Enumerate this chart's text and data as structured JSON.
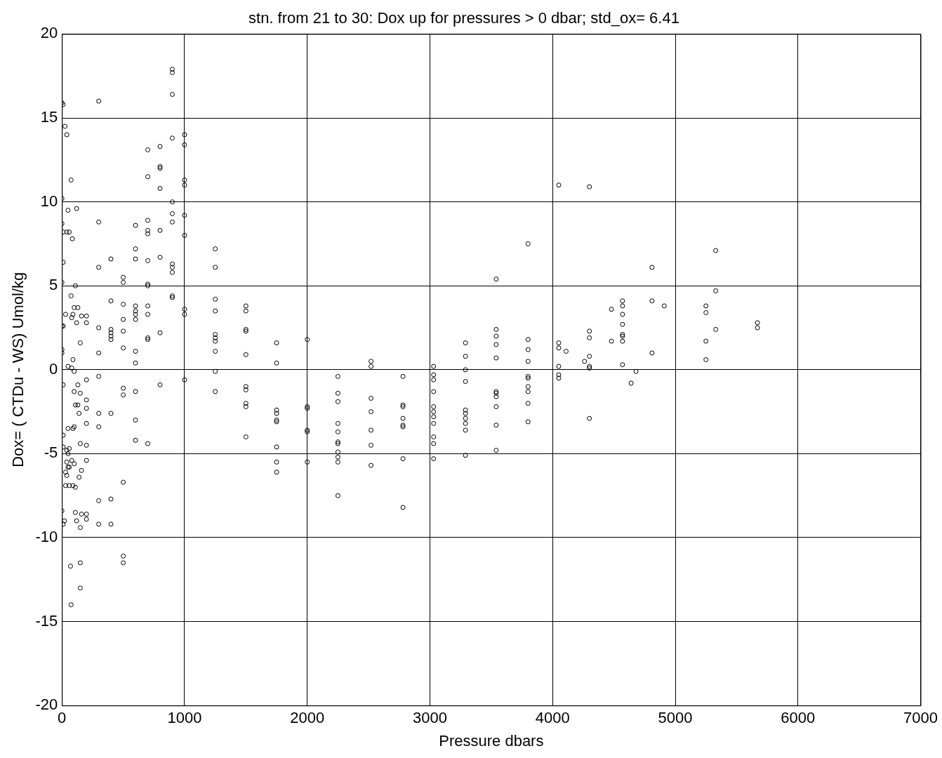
{
  "chart_data": {
    "type": "scatter",
    "title": "stn. from 21 to 30: Dox up for pressures > 0 dbar; std_ox= 6.41",
    "xlabel": "Pressure dbars",
    "ylabel": "Dox= ( CTDu - WS) Umol/kg",
    "color": "#000000",
    "marker": "circle",
    "grid": true,
    "xlim": [
      0,
      7000
    ],
    "ylim": [
      -20,
      20
    ],
    "xticks": [
      0,
      1000,
      2000,
      3000,
      4000,
      5000,
      6000,
      7000
    ],
    "yticks": [
      -20,
      -15,
      -10,
      -5,
      0,
      5,
      10,
      15,
      20
    ],
    "x": [
      0,
      10,
      0,
      0,
      10,
      0,
      10,
      0,
      10,
      0,
      0,
      10,
      10,
      10,
      0,
      10,
      20,
      25,
      40,
      50,
      40,
      60,
      30,
      50,
      40,
      50,
      40,
      50,
      30,
      40,
      30,
      60,
      50,
      60,
      60,
      75,
      85,
      75,
      90,
      100,
      80,
      80,
      90,
      100,
      110,
      100,
      90,
      100,
      80,
      100,
      90,
      110,
      70,
      75,
      110,
      120,
      120,
      110,
      130,
      120,
      130,
      140,
      130,
      150,
      150,
      160,
      150,
      160,
      140,
      150,
      150,
      150,
      160,
      200,
      200,
      200,
      200,
      200,
      200,
      200,
      200,
      200,
      200,
      300,
      300,
      300,
      300,
      300,
      300,
      300,
      300,
      300,
      300,
      400,
      400,
      400,
      400,
      400,
      400,
      400,
      400,
      400,
      500,
      500,
      500,
      500,
      500,
      500,
      500,
      500,
      500,
      500,
      500,
      600,
      600,
      600,
      600,
      600,
      600,
      600,
      600,
      600,
      600,
      600,
      600,
      700,
      700,
      700,
      700,
      700,
      700,
      700,
      700,
      700,
      700,
      700,
      700,
      700,
      800,
      800,
      800,
      800,
      800,
      800,
      800,
      800,
      900,
      900,
      900,
      900,
      900,
      900,
      900,
      900,
      900,
      900,
      900,
      900,
      1000,
      1000,
      1000,
      1000,
      1000,
      1000,
      1000,
      1000,
      1000,
      1250,
      1250,
      1250,
      1250,
      1250,
      1250,
      1250,
      1250,
      1250,
      1250,
      1500,
      1500,
      1500,
      1500,
      1500,
      1500,
      1500,
      1500,
      1500,
      1500,
      1750,
      1750,
      1750,
      1750,
      1750,
      1750,
      1750,
      1750,
      1750,
      2000,
      2000,
      2000,
      2000,
      2000,
      2000,
      2250,
      2250,
      2250,
      2250,
      2250,
      2250,
      2250,
      2250,
      2250,
      2250,
      2250,
      2520,
      2520,
      2520,
      2520,
      2520,
      2520,
      2520,
      2780,
      2780,
      2780,
      2780,
      2780,
      2780,
      2780,
      2780,
      3030,
      3030,
      3030,
      3030,
      3030,
      3030,
      3030,
      3030,
      3030,
      3030,
      3030,
      3290,
      3290,
      3290,
      3290,
      3290,
      3290,
      3290,
      3290,
      3290,
      3290,
      3540,
      3540,
      3540,
      3540,
      3540,
      3540,
      3540,
      3540,
      3540,
      3540,
      3540,
      3800,
      3800,
      3800,
      3800,
      3800,
      3800,
      3800,
      3800,
      3800,
      3800,
      4050,
      4050,
      4050,
      4050,
      4050,
      4050,
      4110,
      4260,
      4300,
      4300,
      4300,
      4300,
      4300,
      4300,
      4300,
      4480,
      4480,
      4570,
      4570,
      4570,
      4570,
      4570,
      4570,
      4570,
      4570,
      4640,
      4680,
      4810,
      4810,
      4810,
      4910,
      5250,
      5250,
      5250,
      5250,
      5330,
      5330,
      5330,
      5670,
      5670
    ],
    "values": [
      15.9,
      15.8,
      10.2,
      8.7,
      8.2,
      5.2,
      6.4,
      2.6,
      2.6,
      1.2,
      1.0,
      -0.9,
      -3.9,
      -4.6,
      -8.4,
      -9.2,
      -9.0,
      14.5,
      14.0,
      9.5,
      8.2,
      8.2,
      3.3,
      0.2,
      -4.8,
      -5.0,
      -5.5,
      -5.8,
      -6.1,
      -6.3,
      -6.9,
      -4.7,
      -3.5,
      -5.8,
      -6.9,
      11.3,
      7.8,
      4.4,
      3.3,
      3.7,
      3.1,
      0.1,
      0.6,
      -0.1,
      -2.1,
      -1.3,
      -3.5,
      -3.4,
      -5.4,
      -5.6,
      -6.9,
      -7.0,
      -11.7,
      -14.0,
      -8.5,
      -9.0,
      9.6,
      5.0,
      3.7,
      2.8,
      -2.1,
      -2.6,
      -0.9,
      -1.4,
      1.6,
      3.2,
      -4.4,
      -6.0,
      -6.4,
      -9.4,
      -11.5,
      -13.0,
      -8.6,
      3.2,
      2.8,
      -0.6,
      -1.8,
      -2.3,
      -3.2,
      -4.5,
      -5.4,
      -8.6,
      -8.9,
      16.0,
      8.8,
      6.1,
      2.5,
      1.0,
      -0.4,
      -2.6,
      -3.4,
      -7.8,
      -9.2,
      6.6,
      4.1,
      2.4,
      2.2,
      2.0,
      1.8,
      -2.6,
      -7.7,
      -9.2,
      5.5,
      5.2,
      3.9,
      3.0,
      2.3,
      1.3,
      -1.1,
      -1.5,
      -6.7,
      -11.1,
      -11.5,
      8.6,
      7.2,
      6.6,
      3.8,
      3.5,
      3.3,
      3.0,
      1.1,
      0.4,
      -1.3,
      -3.0,
      -4.2,
      13.1,
      11.5,
      8.9,
      8.3,
      8.1,
      6.5,
      5.1,
      5.0,
      3.8,
      3.3,
      1.9,
      1.8,
      -4.4,
      13.3,
      12.1,
      12.0,
      10.8,
      8.3,
      6.7,
      2.2,
      -0.9,
      17.9,
      17.7,
      16.4,
      13.8,
      10.0,
      9.3,
      8.8,
      6.3,
      6.1,
      5.8,
      4.4,
      4.3,
      14.0,
      13.4,
      11.3,
      11.0,
      9.2,
      8.0,
      3.6,
      3.3,
      -0.6,
      7.2,
      6.1,
      4.2,
      3.5,
      2.1,
      1.9,
      1.7,
      1.1,
      -0.1,
      -1.3,
      3.8,
      3.5,
      2.4,
      2.3,
      0.9,
      -1.0,
      -1.2,
      -2.0,
      -2.2,
      -4.0,
      1.6,
      0.4,
      -2.4,
      -2.6,
      -3.0,
      -3.1,
      -4.6,
      -5.5,
      -6.1,
      1.8,
      -2.2,
      -2.3,
      -3.6,
      -3.7,
      -5.5,
      -0.4,
      -1.4,
      -1.9,
      -3.2,
      -3.7,
      -4.3,
      -4.4,
      -4.9,
      -5.2,
      -5.5,
      -7.5,
      0.5,
      0.2,
      -1.7,
      -2.5,
      -3.6,
      -4.5,
      -5.7,
      -0.4,
      -2.1,
      -2.2,
      -2.9,
      -3.3,
      -3.4,
      -5.3,
      -8.2,
      0.2,
      -0.3,
      -0.6,
      -1.3,
      -2.2,
      -2.5,
      -2.8,
      -3.2,
      -4.0,
      -4.4,
      -5.3,
      1.6,
      0.8,
      0.0,
      -0.7,
      -2.4,
      -2.6,
      -2.9,
      -3.2,
      -3.6,
      -5.1,
      5.4,
      2.4,
      2.0,
      1.5,
      0.7,
      -1.3,
      -1.4,
      -1.6,
      -2.2,
      -3.3,
      -4.8,
      7.5,
      1.8,
      1.2,
      0.5,
      -0.4,
      -0.5,
      -1.0,
      -1.3,
      -2.0,
      -3.1,
      11.0,
      1.6,
      1.3,
      0.2,
      -0.3,
      -0.5,
      1.1,
      0.5,
      10.9,
      2.3,
      1.9,
      0.8,
      0.2,
      0.1,
      -2.9,
      3.6,
      1.7,
      4.1,
      3.8,
      3.3,
      2.7,
      2.1,
      2.0,
      1.7,
      0.3,
      -0.8,
      -0.1,
      6.1,
      4.1,
      1.0,
      3.8,
      3.8,
      3.4,
      1.7,
      0.6,
      7.1,
      4.7,
      2.4,
      2.8,
      2.5
    ]
  }
}
